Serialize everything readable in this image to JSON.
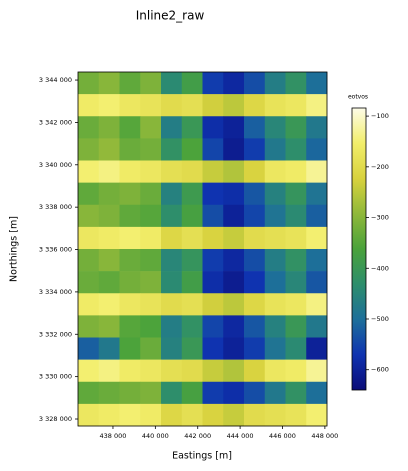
{
  "chart_data": {
    "type": "heatmap",
    "title": "Inline2_raw",
    "x_label": "Eastings [m]",
    "y_label": "Northings [m]",
    "xlim": [
      436350,
      448100
    ],
    "ylim": [
      3327670,
      3344380
    ],
    "xticks": [
      {
        "value": 438000,
        "label": "438 000"
      },
      {
        "value": 440000,
        "label": "440 000"
      },
      {
        "value": 442000,
        "label": "442 000"
      },
      {
        "value": 444000,
        "label": "444 000"
      },
      {
        "value": 446000,
        "label": "446 000"
      },
      {
        "value": 448000,
        "label": "448 000"
      }
    ],
    "yticks": [
      {
        "value": 3328000,
        "label": "3 328 000"
      },
      {
        "value": 3330000,
        "label": "3 330 000"
      },
      {
        "value": 3332000,
        "label": "3 332 000"
      },
      {
        "value": 3334000,
        "label": "3 334 000"
      },
      {
        "value": 3336000,
        "label": "3 336 000"
      },
      {
        "value": 3338000,
        "label": "3 338 000"
      },
      {
        "value": 3340000,
        "label": "3 340 000"
      },
      {
        "value": 3342000,
        "label": "3 342 000"
      },
      {
        "value": 3344000,
        "label": "3 344 000"
      }
    ],
    "z": [
      [
        -320,
        -300,
        -340,
        -310,
        -440,
        -380,
        -560,
        -590,
        -540,
        -470,
        -420,
        -500
      ],
      [
        -160,
        -150,
        -170,
        -180,
        -200,
        -190,
        -230,
        -250,
        -210,
        -180,
        -170,
        -140
      ],
      [
        -330,
        -310,
        -350,
        -300,
        -470,
        -400,
        -580,
        -600,
        -520,
        -450,
        -400,
        -480
      ],
      [
        -310,
        -290,
        -330,
        -320,
        -420,
        -360,
        -550,
        -610,
        -560,
        -480,
        -430,
        -510
      ],
      [
        -150,
        -140,
        -160,
        -170,
        -190,
        -200,
        -240,
        -260,
        -220,
        -170,
        -160,
        -130
      ],
      [
        -340,
        -320,
        -310,
        -330,
        -460,
        -390,
        -570,
        -580,
        -530,
        -460,
        -410,
        -490
      ],
      [
        -300,
        -310,
        -340,
        -350,
        -430,
        -370,
        -540,
        -600,
        -550,
        -490,
        -440,
        -520
      ],
      [
        -170,
        -160,
        -150,
        -160,
        -210,
        -190,
        -220,
        -240,
        -200,
        -190,
        -180,
        -150
      ],
      [
        -320,
        -300,
        -330,
        -340,
        -450,
        -410,
        -560,
        -590,
        -540,
        -470,
        -420,
        -500
      ],
      [
        -330,
        -340,
        -320,
        -310,
        -440,
        -380,
        -580,
        -610,
        -570,
        -500,
        -450,
        -530
      ],
      [
        -160,
        -150,
        -170,
        -180,
        -200,
        -190,
        -230,
        -250,
        -210,
        -180,
        -170,
        -140
      ],
      [
        -310,
        -300,
        -350,
        -360,
        -470,
        -420,
        -550,
        -590,
        -530,
        -460,
        -400,
        -480
      ],
      [
        -520,
        -480,
        -360,
        -330,
        -460,
        -400,
        -570,
        -600,
        -560,
        -490,
        -440,
        -600
      ],
      [
        -150,
        -140,
        -160,
        -170,
        -190,
        -200,
        -240,
        -260,
        -220,
        -170,
        -160,
        -130
      ],
      [
        -340,
        -330,
        -320,
        -310,
        -430,
        -370,
        -560,
        -580,
        -540,
        -480,
        -420,
        -500
      ],
      [
        -170,
        -160,
        -150,
        -160,
        -210,
        -190,
        -220,
        -240,
        -200,
        -190,
        -180,
        -150
      ]
    ],
    "colormap": [
      "#0b0c78",
      "#0f33b0",
      "#1d6f9a",
      "#2d8e6c",
      "#4aa23b",
      "#8fb83a",
      "#d8d23e",
      "#f2ee6a",
      "#fdfce8"
    ],
    "colorbar_label": "eotvos",
    "clim": [
      -640,
      -84
    ],
    "cticks": [
      {
        "value": -600,
        "label": "−600"
      },
      {
        "value": -500,
        "label": "−500"
      },
      {
        "value": -400,
        "label": "−400"
      },
      {
        "value": -300,
        "label": "−300"
      },
      {
        "value": -200,
        "label": "−200"
      },
      {
        "value": -100,
        "label": "−100"
      }
    ]
  }
}
